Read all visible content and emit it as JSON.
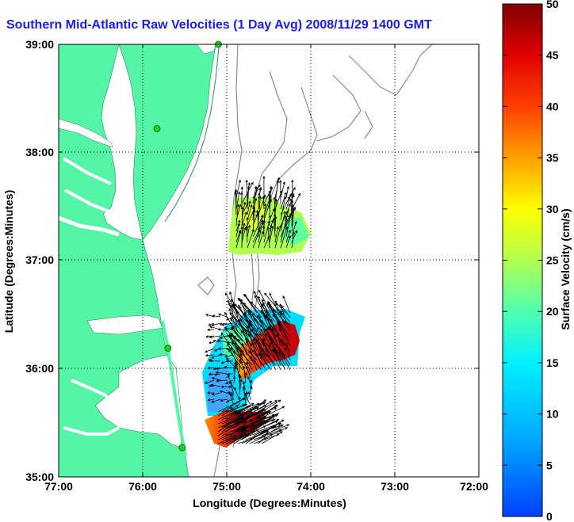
{
  "title": "Southern Mid-Atlantic Raw Velocities (1 Day Avg) 2008/11/29 1400 GMT",
  "map": {
    "x_label": "Longitude (Degrees:Minutes)",
    "y_label": "Latitude (Degrees:Minutes)",
    "x_ticks": [
      "77:00",
      "76:00",
      "75:00",
      "74:00",
      "73:00",
      "72:00"
    ],
    "y_ticks": [
      "39:00",
      "38:00",
      "37:00",
      "36:00",
      "35:00"
    ],
    "lon_range": [
      -77,
      -72
    ],
    "lat_range": [
      35,
      39
    ],
    "grid": true,
    "land_color": "#55f5a8",
    "bathymetry_color": "#8c8c8c",
    "station_color": "#22cc22",
    "stations": [
      {
        "lon": -75.1,
        "lat": 39.0
      },
      {
        "lon": -75.83,
        "lat": 38.22
      },
      {
        "lon": -75.7,
        "lat": 36.19
      },
      {
        "lon": -75.53,
        "lat": 35.27
      }
    ]
  },
  "colorbar": {
    "label": "Surface Velocity (cm/s)",
    "min": 0,
    "max": 50,
    "ticks": [
      "0",
      "5",
      "10",
      "15",
      "20",
      "25",
      "30",
      "35",
      "40",
      "45",
      "50"
    ]
  }
}
